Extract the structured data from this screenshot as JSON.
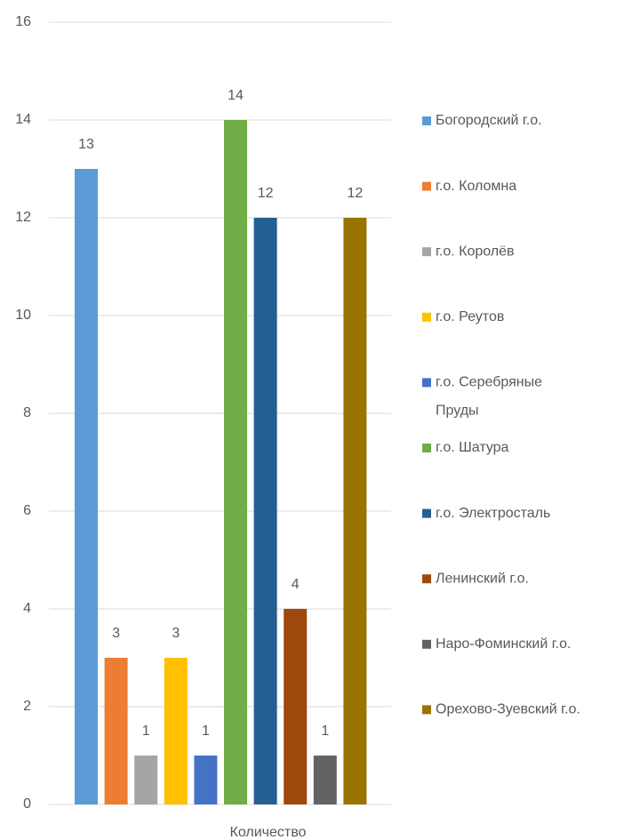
{
  "chart_data": {
    "type": "bar",
    "categories": [
      "Количество"
    ],
    "series": [
      {
        "name": "Богородский г.о.",
        "color": "#5b9bd5",
        "values": [
          13
        ]
      },
      {
        "name": "г.о. Коломна",
        "color": "#ed7d31",
        "values": [
          3
        ]
      },
      {
        "name": "г.о. Королёв",
        "color": "#a5a5a5",
        "values": [
          1
        ]
      },
      {
        "name": "г.о. Реутов",
        "color": "#ffc000",
        "values": [
          3
        ]
      },
      {
        "name": "г.о. Серебряные Пруды",
        "color": "#4472c4",
        "values": [
          1
        ]
      },
      {
        "name": "г.о. Шатура",
        "color": "#70ad47",
        "values": [
          14
        ]
      },
      {
        "name": "г.о. Электросталь",
        "color": "#255e91",
        "values": [
          12
        ]
      },
      {
        "name": "Ленинский г.о.",
        "color": "#9e480e",
        "values": [
          4
        ]
      },
      {
        "name": "Наро-Фоминский г.о.",
        "color": "#636363",
        "values": [
          1
        ]
      },
      {
        "name": "Орехово-Зуевский г.о.",
        "color": "#997300",
        "values": [
          12
        ]
      }
    ],
    "ylim": [
      0,
      16
    ],
    "yticks": [
      0,
      2,
      4,
      6,
      8,
      10,
      12,
      14,
      16
    ],
    "grid": true,
    "legend": "right"
  }
}
